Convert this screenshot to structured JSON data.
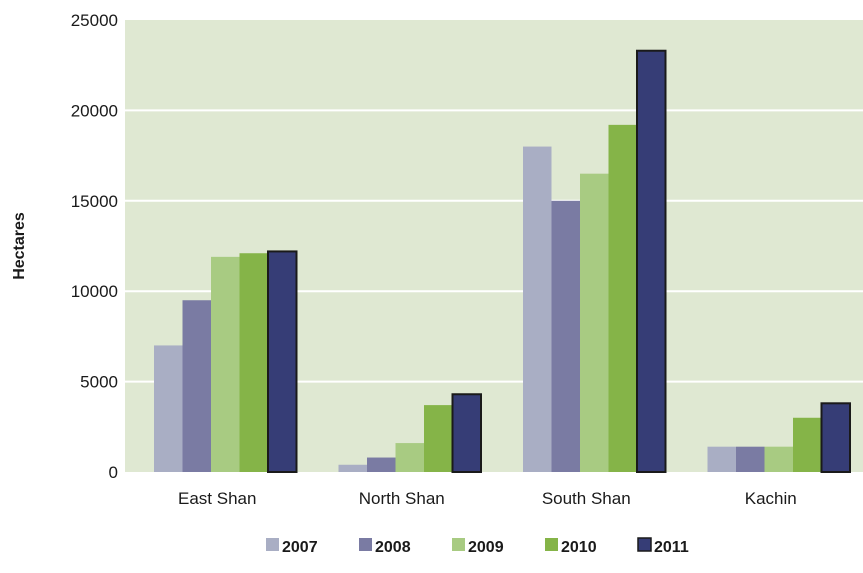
{
  "chart_data": {
    "type": "bar",
    "ylabel": "Hectares",
    "xlabel": "",
    "ylim": [
      0,
      25000
    ],
    "yticks": [
      0,
      5000,
      10000,
      15000,
      20000,
      25000
    ],
    "grid": true,
    "legend_position": "bottom",
    "categories": [
      "East Shan",
      "North Shan",
      "South Shan",
      "Kachin"
    ],
    "series": [
      {
        "name": "2007",
        "color": "#a9aec4",
        "values": [
          7000,
          400,
          18000,
          1400
        ]
      },
      {
        "name": "2008",
        "color": "#7a7ba3",
        "values": [
          9500,
          800,
          15000,
          1400
        ]
      },
      {
        "name": "2009",
        "color": "#a8cb82",
        "values": [
          11900,
          1600,
          16500,
          1400
        ]
      },
      {
        "name": "2010",
        "color": "#85b448",
        "values": [
          12100,
          3700,
          19200,
          3000
        ]
      },
      {
        "name": "2011",
        "color": "#363d76",
        "values": [
          12200,
          4300,
          23300,
          3800
        ]
      }
    ],
    "colors": {
      "plot_background": "#dfe8d2",
      "grid": "#ffffff",
      "last_series_outline": "#1a1a1a"
    }
  }
}
